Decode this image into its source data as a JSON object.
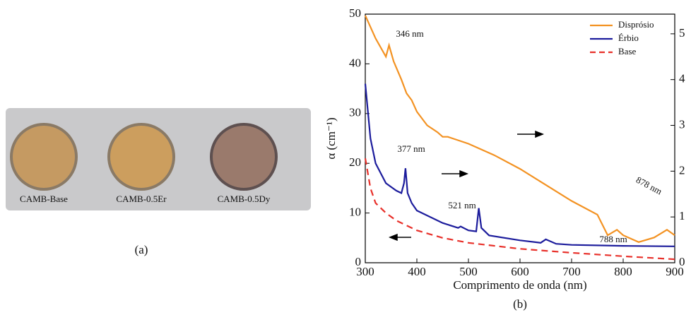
{
  "photo": {
    "labels": [
      "CAMB-Base",
      "CAMB-0.5Er",
      "CAMB-0.5Dy"
    ],
    "caption": "(a)"
  },
  "chart_data": {
    "type": "line",
    "caption": "(b)",
    "x_label": "Comprimento de onda (nm)",
    "y_label": "α (cm⁻¹)",
    "xlim": [
      300,
      900
    ],
    "xticks": [
      300,
      400,
      500,
      600,
      700,
      800,
      900
    ],
    "ylim": [
      0,
      50
    ],
    "yticks": [
      0,
      10,
      20,
      30,
      40,
      50
    ],
    "y2lim": [
      0,
      5.43
    ],
    "y2ticks": [
      0,
      1,
      2,
      3,
      4,
      5
    ],
    "legend": "upper right",
    "annotations": [
      "346 nm",
      "377 nm",
      "521 nm",
      "788 nm",
      "878 nm"
    ],
    "series": [
      {
        "name": "Disprósio",
        "color": "#f39222",
        "axis": "y2",
        "dash": false,
        "x": [
          300,
          320,
          340,
          346,
          355,
          370,
          380,
          390,
          400,
          420,
          440,
          450,
          460,
          500,
          550,
          600,
          650,
          700,
          750,
          770,
          788,
          800,
          830,
          860,
          885,
          900
        ],
        "values": [
          5.4,
          4.9,
          4.5,
          4.75,
          4.4,
          4.0,
          3.7,
          3.55,
          3.3,
          3.0,
          2.85,
          2.75,
          2.75,
          2.6,
          2.35,
          2.05,
          1.7,
          1.35,
          1.05,
          0.6,
          0.72,
          0.6,
          0.45,
          0.55,
          0.72,
          0.6
        ]
      },
      {
        "name": "Érbio",
        "color": "#1c1c9c",
        "axis": "y",
        "dash": false,
        "x": [
          300,
          310,
          320,
          340,
          360,
          370,
          375,
          378,
          382,
          390,
          400,
          450,
          480,
          485,
          500,
          515,
          520,
          525,
          540,
          600,
          640,
          650,
          670,
          700,
          800,
          900
        ],
        "values": [
          36,
          25,
          20,
          16,
          14.5,
          14,
          16,
          19,
          14,
          12,
          10.5,
          8,
          7,
          7.3,
          6.5,
          6.3,
          11,
          7,
          5.5,
          4.5,
          4,
          4.7,
          3.8,
          3.6,
          3.4,
          3.3
        ]
      },
      {
        "name": "Base",
        "color": "#e8302a",
        "axis": "y",
        "dash": true,
        "x": [
          300,
          310,
          320,
          340,
          360,
          400,
          450,
          500,
          600,
          700,
          800,
          900
        ],
        "values": [
          21,
          15,
          12,
          10,
          8.5,
          6.5,
          5,
          4,
          2.8,
          2,
          1.3,
          0.7
        ]
      }
    ]
  }
}
